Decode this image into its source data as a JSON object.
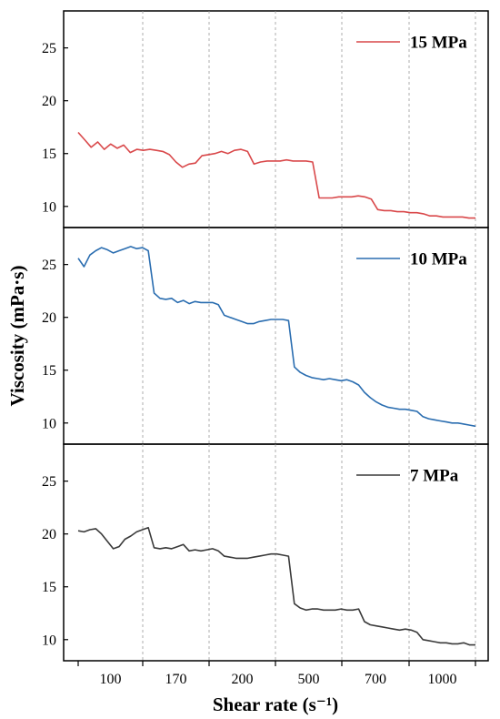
{
  "chart_data": {
    "type": "line",
    "xlabel": "Shear rate (s⁻¹)",
    "ylabel": "Viscosity (mPa·s)",
    "x_tick_labels": [
      "100",
      "170",
      "200",
      "500",
      "700",
      "1000"
    ],
    "x_scale": "categorical shear-rate steps",
    "ylim": [
      8,
      28.5
    ],
    "yticks": [
      10,
      15,
      20,
      25
    ],
    "y_tick_labels": [
      "10",
      "15",
      "20",
      "25"
    ],
    "grid": "vertical dashed lines at step boundaries",
    "legend_placement": "top-right of each panel",
    "panels": [
      {
        "series_name": "15 MPa",
        "color": "#d9484a",
        "values": [
          17.0,
          16.3,
          15.6,
          16.1,
          15.4,
          15.9,
          15.5,
          15.8,
          15.1,
          15.4,
          15.3,
          15.4,
          15.3,
          15.2,
          14.9,
          14.2,
          13.7,
          14.0,
          14.1,
          14.8,
          14.9,
          15.0,
          15.2,
          15.0,
          15.3,
          15.4,
          15.2,
          14.0,
          14.2,
          14.3,
          14.3,
          14.3,
          14.4,
          14.3,
          14.3,
          14.3,
          14.2,
          10.8,
          10.8,
          10.8,
          10.9,
          10.9,
          10.9,
          11.0,
          10.9,
          10.7,
          9.7,
          9.6,
          9.6,
          9.5,
          9.5,
          9.4,
          9.4,
          9.3,
          9.1,
          9.1,
          9.0,
          9.0,
          9.0,
          9.0,
          8.9,
          8.9
        ]
      },
      {
        "series_name": "10 MPa",
        "color": "#2a6db0",
        "values": [
          25.6,
          24.8,
          25.9,
          26.3,
          26.6,
          26.4,
          26.1,
          26.3,
          26.5,
          26.7,
          26.5,
          26.6,
          26.3,
          22.3,
          21.8,
          21.7,
          21.8,
          21.4,
          21.6,
          21.3,
          21.5,
          21.4,
          21.4,
          21.4,
          21.2,
          20.2,
          20.0,
          19.8,
          19.6,
          19.4,
          19.4,
          19.6,
          19.7,
          19.8,
          19.8,
          19.8,
          19.7,
          15.3,
          14.8,
          14.5,
          14.3,
          14.2,
          14.1,
          14.2,
          14.1,
          14.0,
          14.1,
          13.9,
          13.6,
          12.9,
          12.4,
          12.0,
          11.7,
          11.5,
          11.4,
          11.3,
          11.3,
          11.2,
          11.1,
          10.6,
          10.4,
          10.3,
          10.2,
          10.1,
          10.0,
          10.0,
          9.9,
          9.8,
          9.7
        ]
      },
      {
        "series_name": "7 MPa",
        "color": "#3a3a3a",
        "values": [
          20.3,
          20.2,
          20.4,
          20.5,
          20.0,
          19.3,
          18.6,
          18.8,
          19.5,
          19.8,
          20.2,
          20.4,
          20.6,
          18.7,
          18.6,
          18.7,
          18.6,
          18.8,
          19.0,
          18.4,
          18.5,
          18.4,
          18.5,
          18.6,
          18.4,
          17.9,
          17.8,
          17.7,
          17.7,
          17.7,
          17.8,
          17.9,
          18.0,
          18.1,
          18.1,
          18.0,
          17.9,
          13.4,
          13.0,
          12.8,
          12.9,
          12.9,
          12.8,
          12.8,
          12.8,
          12.9,
          12.8,
          12.8,
          12.9,
          11.7,
          11.4,
          11.3,
          11.2,
          11.1,
          11.0,
          10.9,
          11.0,
          10.9,
          10.7,
          10.0,
          9.9,
          9.8,
          9.7,
          9.7,
          9.6,
          9.6,
          9.7,
          9.5,
          9.5
        ]
      }
    ]
  }
}
